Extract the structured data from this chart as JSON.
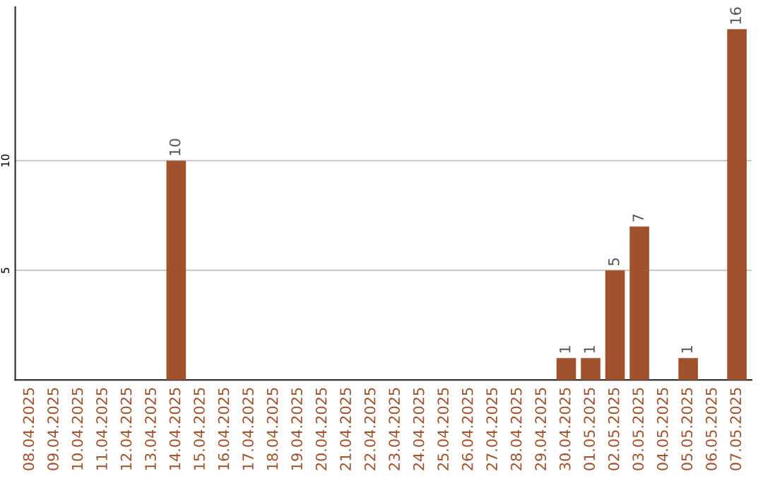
{
  "chart_data": {
    "type": "bar",
    "categories": [
      "08.04.2025",
      "09.04.2025",
      "10.04.2025",
      "11.04.2025",
      "12.04.2025",
      "13.04.2025",
      "14.04.2025",
      "15.04.2025",
      "16.04.2025",
      "17.04.2025",
      "18.04.2025",
      "19.04.2025",
      "20.04.2025",
      "21.04.2025",
      "22.04.2025",
      "23.04.2025",
      "24.04.2025",
      "25.04.2025",
      "26.04.2025",
      "27.04.2025",
      "28.04.2025",
      "29.04.2025",
      "30.04.2025",
      "01.05.2025",
      "02.05.2025",
      "03.05.2025",
      "04.05.2025",
      "05.05.2025",
      "06.05.2025",
      "07.05.2025"
    ],
    "values": [
      0,
      0,
      0,
      0,
      0,
      0,
      10,
      0,
      0,
      0,
      0,
      0,
      0,
      0,
      0,
      0,
      0,
      0,
      0,
      0,
      0,
      0,
      1,
      1,
      5,
      7,
      0,
      1,
      0,
      16
    ],
    "value_labels": [
      null,
      null,
      null,
      null,
      null,
      null,
      "10",
      null,
      null,
      null,
      null,
      null,
      null,
      null,
      null,
      null,
      null,
      null,
      null,
      null,
      null,
      null,
      "1",
      "1",
      "5",
      "7",
      null,
      "1",
      null,
      "16"
    ],
    "color": "#a0522d",
    "ylim": [
      0,
      17
    ],
    "yticks": [
      5,
      10
    ],
    "grid": "y"
  }
}
